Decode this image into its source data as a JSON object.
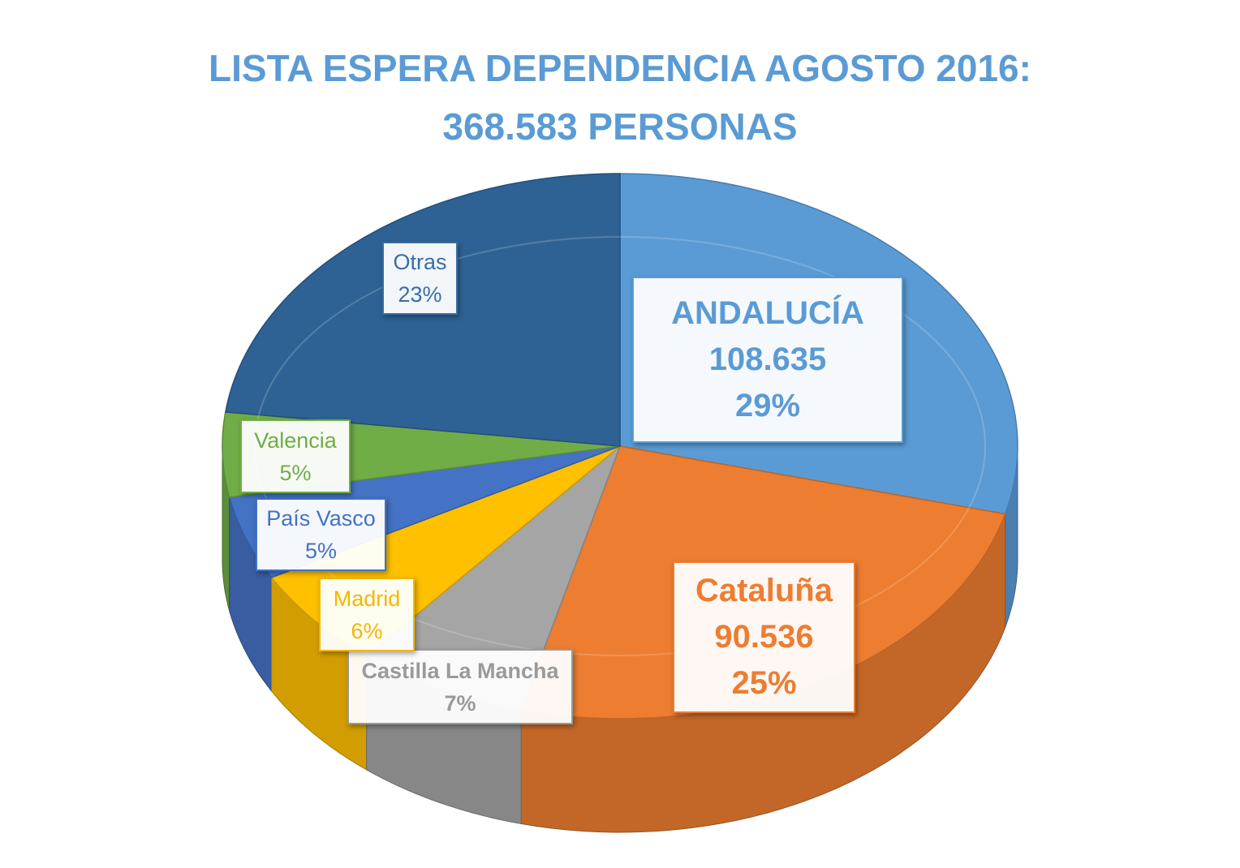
{
  "title": {
    "line1": "LISTA ESPERA DEPENDENCIA AGOSTO 2016:",
    "line2": "368.583 PERSONAS"
  },
  "chart_data": {
    "type": "pie",
    "style": "3d",
    "total_label": "368.583 PERSONAS",
    "slices": [
      {
        "label": "ANDALUCÍA",
        "value": 108635,
        "value_text": "108.635",
        "percent": 29,
        "percent_text": "29%",
        "color": "#5b9bd5"
      },
      {
        "label": "Cataluña",
        "value": 90536,
        "value_text": "90.536",
        "percent": 25,
        "percent_text": "25%",
        "color": "#ed7d31"
      },
      {
        "label": "Castilla La Mancha",
        "percent": 7,
        "percent_text": "7%",
        "color": "#a5a5a5"
      },
      {
        "label": "Madrid",
        "percent": 6,
        "percent_text": "6%",
        "color": "#ffc000"
      },
      {
        "label": "País Vasco",
        "percent": 5,
        "percent_text": "5%",
        "color": "#4472c4"
      },
      {
        "label": "Valencia",
        "percent": 5,
        "percent_text": "5%",
        "color": "#70ad47"
      },
      {
        "label": "Otras",
        "percent": 23,
        "percent_text": "23%",
        "color": "#2e6294"
      }
    ]
  }
}
